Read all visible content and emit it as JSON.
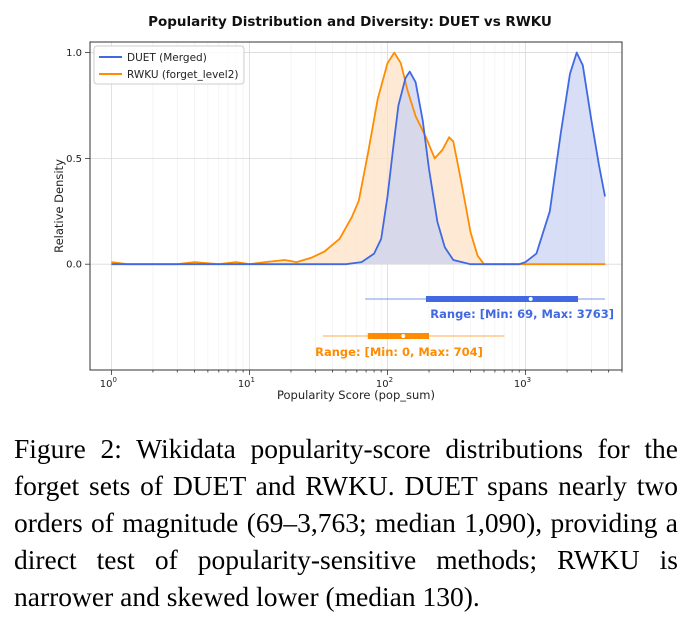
{
  "chart_data": {
    "type": "area",
    "title": "Popularity Distribution and Diversity: DUET vs RWKU",
    "xlabel": "Popularity Score (pop_sum)",
    "ylabel": "Relative Density",
    "xscale": "log",
    "xlim": [
      0.7,
      5000
    ],
    "ylim": [
      -0.5,
      1.05
    ],
    "x_ticks": [
      {
        "value": 1,
        "label": "10",
        "exp": "0"
      },
      {
        "value": 10,
        "label": "10",
        "exp": "1"
      },
      {
        "value": 100,
        "label": "10",
        "exp": "2"
      },
      {
        "value": 1000,
        "label": "10",
        "exp": "3"
      }
    ],
    "y_ticks": [
      0.0,
      0.5,
      1.0
    ],
    "y_tick_labels": [
      "0.0",
      "0.5",
      "1.0"
    ],
    "grid": true,
    "legend_position": "top-left",
    "series": [
      {
        "name": "DUET (Merged)",
        "color": "#4169e1",
        "fill": "#c9d3f3",
        "points": [
          [
            1,
            0
          ],
          [
            5,
            0
          ],
          [
            20,
            0
          ],
          [
            50,
            0.0
          ],
          [
            65,
            0.01
          ],
          [
            80,
            0.05
          ],
          [
            90,
            0.12
          ],
          [
            100,
            0.32
          ],
          [
            110,
            0.55
          ],
          [
            120,
            0.75
          ],
          [
            135,
            0.88
          ],
          [
            145,
            0.91
          ],
          [
            160,
            0.86
          ],
          [
            180,
            0.68
          ],
          [
            200,
            0.45
          ],
          [
            230,
            0.2
          ],
          [
            260,
            0.08
          ],
          [
            300,
            0.02
          ],
          [
            400,
            0.0
          ],
          [
            600,
            0.0
          ],
          [
            900,
            0.0
          ],
          [
            1000,
            0.01
          ],
          [
            1200,
            0.05
          ],
          [
            1500,
            0.25
          ],
          [
            1800,
            0.62
          ],
          [
            2100,
            0.9
          ],
          [
            2350,
            1.0
          ],
          [
            2600,
            0.94
          ],
          [
            3000,
            0.68
          ],
          [
            3400,
            0.47
          ],
          [
            3763,
            0.32
          ]
        ],
        "box": {
          "min": 69,
          "q1": 190,
          "median": 1090,
          "q3": 2400,
          "max": 3763
        },
        "range_label": "Range: [Min: 69, Max: 3763]"
      },
      {
        "name": "RWKU (forget_level2)",
        "color": "#ff8c00",
        "fill": "#fde3c6",
        "points": [
          [
            1,
            0.01
          ],
          [
            1.3,
            0.0
          ],
          [
            3,
            0.0
          ],
          [
            4,
            0.01
          ],
          [
            6,
            0.0
          ],
          [
            8,
            0.01
          ],
          [
            10,
            0.0
          ],
          [
            13,
            0.01
          ],
          [
            18,
            0.02
          ],
          [
            22,
            0.01
          ],
          [
            28,
            0.03
          ],
          [
            35,
            0.06
          ],
          [
            45,
            0.12
          ],
          [
            55,
            0.22
          ],
          [
            62,
            0.3
          ],
          [
            72,
            0.52
          ],
          [
            85,
            0.78
          ],
          [
            100,
            0.95
          ],
          [
            112,
            1.0
          ],
          [
            125,
            0.95
          ],
          [
            140,
            0.82
          ],
          [
            160,
            0.7
          ],
          [
            190,
            0.6
          ],
          [
            220,
            0.5
          ],
          [
            250,
            0.54
          ],
          [
            280,
            0.6
          ],
          [
            300,
            0.58
          ],
          [
            340,
            0.4
          ],
          [
            400,
            0.15
          ],
          [
            450,
            0.04
          ],
          [
            500,
            0.0
          ],
          [
            700,
            0.0
          ],
          [
            1200,
            0.0
          ],
          [
            2500,
            0.0
          ],
          [
            3800,
            0.0
          ]
        ],
        "box": {
          "min": 0,
          "q1": 72,
          "median": 130,
          "q3": 200,
          "max": 704
        },
        "range_label": "Range: [Min: 0, Max: 704]"
      }
    ]
  },
  "caption": "Figure 2: Wikidata popularity-score distributions for the forget sets of DUET and RWKU. DUET spans nearly two orders of magnitude (69–3,763; median 1,090), providing a direct test of popularity-sensitive methods; RWKU is narrower and skewed lower (median 130)."
}
